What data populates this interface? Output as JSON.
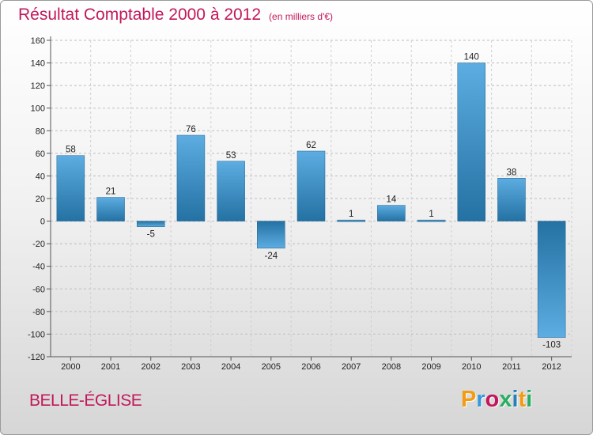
{
  "title": "Résultat Comptable 2000 à 2012",
  "unit": "(en milliers d'€)",
  "location": "BELLE-ÉGLISE",
  "logo": {
    "text": "Proxiti",
    "colors": [
      "#f39c12",
      "#3498db",
      "#c2185b",
      "#27ae60",
      "#2980b9",
      "#f39c12",
      "#27ae60"
    ]
  },
  "colors": {
    "bar_light": "#5dade2",
    "bar_dark": "#2471a3",
    "accent": "#c2185b"
  },
  "chart_data": {
    "type": "bar",
    "title": "Résultat Comptable 2000 à 2012",
    "xlabel": "",
    "ylabel": "(en milliers d'€)",
    "categories": [
      "2000",
      "2001",
      "2002",
      "2003",
      "2004",
      "2005",
      "2006",
      "2007",
      "2008",
      "2009",
      "2010",
      "2011",
      "2012"
    ],
    "values": [
      58,
      21,
      -5,
      76,
      53,
      -24,
      62,
      1,
      14,
      1,
      140,
      38,
      -103
    ],
    "value_labels": [
      "58",
      "21",
      "-5",
      "76",
      "53",
      "-24",
      "62",
      "1",
      "14",
      "1",
      "140",
      "38",
      "-103"
    ],
    "ylim": [
      -120,
      160
    ],
    "yticks": [
      160,
      140,
      120,
      100,
      80,
      60,
      40,
      20,
      0,
      -20,
      -40,
      -60,
      -80,
      -100,
      -120
    ],
    "ytick_labels": [
      "160",
      "140",
      "120",
      "100",
      "80",
      "60",
      "40",
      "20",
      "0",
      "-20",
      "-40",
      "-60",
      "-80",
      "-100",
      "-120"
    ],
    "grid": true
  }
}
